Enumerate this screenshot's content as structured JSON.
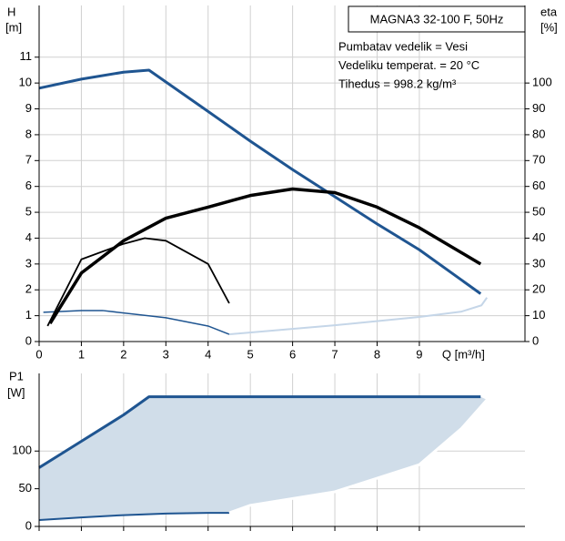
{
  "chart_data": [
    {
      "type": "line",
      "title": "MAGNA3 32-100 F, 50Hz",
      "annotations": [
        "Pumbatav vedelik = Vesi",
        "Vedeliku temperat. = 20 °C",
        "Tihedus = 998.2 kg/m³"
      ],
      "ylabel": "H",
      "yunit": "[m]",
      "y2label": "eta",
      "y2unit": "[%]",
      "xlabel": "Q [m³/h]",
      "xlim": [
        0,
        11.5
      ],
      "xticks": [
        0,
        1,
        2,
        3,
        4,
        5,
        6,
        7,
        8,
        9
      ],
      "ylim": [
        0,
        13
      ],
      "yticks": [
        0,
        1,
        2,
        3,
        4,
        5,
        6,
        7,
        8,
        9,
        10,
        11
      ],
      "y2lim": [
        0,
        130
      ],
      "y2ticks": [
        0,
        10,
        20,
        30,
        40,
        50,
        60,
        70,
        80,
        90,
        100
      ],
      "grid": true,
      "series": [
        {
          "color": "#1f5591",
          "width": 3,
          "x": [
            0,
            1,
            2,
            2.6,
            4,
            5,
            6,
            7,
            8,
            9,
            10.45
          ],
          "values": [
            9.8,
            10.15,
            10.42,
            10.5,
            8.9,
            7.75,
            6.65,
            5.6,
            4.55,
            3.55,
            1.85
          ]
        },
        {
          "color": "#1f5591",
          "width": 1.5,
          "x": [
            0.1,
            1,
            1.5,
            3,
            4,
            4.5
          ],
          "values": [
            1.13,
            1.2,
            1.2,
            0.92,
            0.6,
            0.28
          ]
        },
        {
          "color": "#c5d6e8",
          "width": 2,
          "x": [
            4.5,
            7,
            9,
            10,
            10.47,
            10.6
          ],
          "values": [
            0.28,
            0.63,
            0.95,
            1.16,
            1.4,
            1.7
          ]
        },
        {
          "color": "#000000",
          "width": 3.5,
          "axis": "y2",
          "x": [
            0.26,
            1,
            2,
            3,
            4,
            5,
            6,
            7,
            8,
            9,
            10.45
          ],
          "values": [
            7,
            26.5,
            39,
            47.7,
            52,
            56.5,
            59,
            57.6,
            52,
            44,
            30
          ]
        },
        {
          "color": "#000000",
          "width": 1.8,
          "axis": "y2",
          "x": [
            0.2,
            1,
            2,
            2.5,
            3,
            4,
            4.5
          ],
          "values": [
            6,
            31.8,
            37.8,
            40,
            39,
            30,
            14.8
          ]
        }
      ]
    },
    {
      "type": "line",
      "ylabel": "P1",
      "yunit": "[W]",
      "xlim": [
        0,
        11.5
      ],
      "ylim": [
        0,
        203
      ],
      "yticks": [
        0,
        50,
        100
      ],
      "grid": true,
      "area_color": "#d0dde9",
      "series": [
        {
          "color": "#1f5591",
          "width": 3,
          "x": [
            0,
            1,
            2,
            2.6,
            10.45
          ],
          "values": [
            78,
            113,
            148,
            172,
            172
          ]
        },
        {
          "color": "#1f5591",
          "width": 2,
          "x": [
            0,
            1,
            2,
            3,
            4,
            4.5
          ],
          "values": [
            8.5,
            12,
            15,
            17,
            18,
            18
          ]
        },
        {
          "color": "#ffffff",
          "width": 3,
          "x": [
            4.5,
            5,
            7,
            9,
            10,
            10.6
          ],
          "values": [
            18,
            28,
            46,
            82,
            130,
            168
          ]
        }
      ]
    }
  ]
}
